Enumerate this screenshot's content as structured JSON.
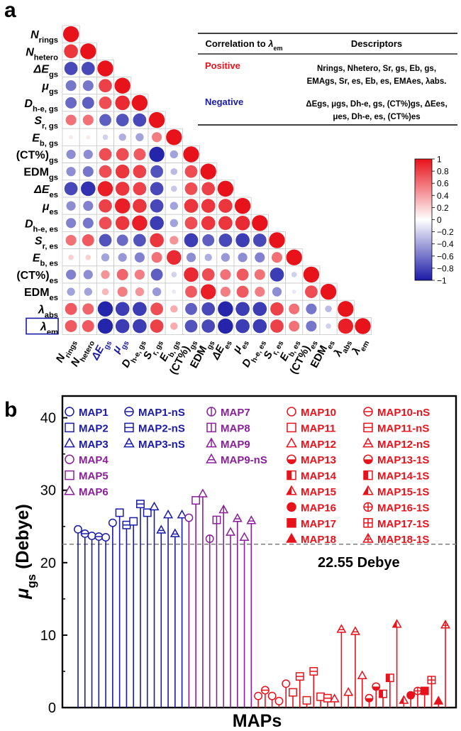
{
  "panel_labels": {
    "a": "a",
    "b": "b"
  },
  "colors": {
    "red": "#e8121b",
    "blue": "#1a1aa8",
    "purple": "#8a1f9a",
    "border": "#c8c8c8",
    "ref_line": "#888888"
  },
  "chart_data": [
    {
      "type": "heatmap",
      "labels": [
        [
          "N",
          "rings"
        ],
        [
          "N",
          "hetero"
        ],
        [
          "ΔE",
          "gs"
        ],
        [
          "μ",
          "gs"
        ],
        [
          "D",
          "h-e, gs"
        ],
        [
          "S",
          "r, gs"
        ],
        [
          "E",
          "b, gs"
        ],
        [
          "(CT%)",
          "gs"
        ],
        [
          "EDM",
          "gs"
        ],
        [
          "ΔE",
          "es"
        ],
        [
          "μ",
          "es"
        ],
        [
          "D",
          "h-e, es"
        ],
        [
          "S",
          "r, es"
        ],
        [
          "E",
          "b, es"
        ],
        [
          "(CT%)",
          "es"
        ],
        [
          "EDM",
          "es"
        ],
        [
          "λ",
          "abs"
        ],
        [
          "λ",
          "em"
        ]
      ],
      "label_italic": [
        true,
        true,
        true,
        true,
        true,
        true,
        true,
        false,
        false,
        true,
        true,
        true,
        true,
        true,
        false,
        false,
        true,
        true
      ],
      "blue_x_labels": [
        2,
        3
      ],
      "boxed_y_label": 17,
      "matrix": [
        [
          1
        ],
        [
          0.85,
          1
        ],
        [
          -0.8,
          -0.8,
          1
        ],
        [
          -0.6,
          -0.6,
          0.8,
          1
        ],
        [
          -0.65,
          -0.7,
          0.75,
          0.9,
          1
        ],
        [
          0.6,
          0.6,
          -0.7,
          -0.75,
          -0.8,
          1
        ],
        [
          0.1,
          0.1,
          -0.2,
          -0.35,
          -0.4,
          0.55,
          1
        ],
        [
          -0.5,
          -0.5,
          0.75,
          0.75,
          0.7,
          -0.95,
          -0.4,
          1
        ],
        [
          -0.5,
          -0.6,
          0.75,
          0.85,
          0.8,
          -0.75,
          -0.3,
          0.75,
          1
        ],
        [
          -0.8,
          -0.9,
          0.95,
          0.85,
          0.8,
          -0.8,
          -0.25,
          0.75,
          0.8,
          1
        ],
        [
          -0.5,
          -0.55,
          0.8,
          0.95,
          0.85,
          -0.8,
          -0.4,
          0.85,
          0.85,
          0.85,
          1
        ],
        [
          -0.55,
          -0.6,
          0.75,
          0.85,
          0.95,
          -0.85,
          -0.4,
          0.75,
          0.85,
          0.85,
          0.9,
          1
        ],
        [
          0.6,
          0.7,
          -0.75,
          -0.65,
          -0.75,
          0.85,
          0.45,
          -0.85,
          -0.7,
          -0.8,
          -0.85,
          -0.8,
          1
        ],
        [
          0.2,
          0.2,
          -0.4,
          -0.45,
          -0.55,
          0.6,
          0.9,
          -0.5,
          -0.35,
          -0.45,
          -0.5,
          -0.55,
          0.6,
          1
        ],
        [
          -0.55,
          -0.5,
          0.45,
          0.65,
          0.55,
          -0.7,
          -0.2,
          0.9,
          0.75,
          0.6,
          0.7,
          0.6,
          -0.85,
          -0.2,
          1
        ],
        [
          -0.4,
          -0.4,
          0.3,
          0.55,
          0.45,
          -0.45,
          -0.1,
          0.7,
          0.95,
          0.55,
          0.7,
          0.55,
          -0.5,
          -0.1,
          0.75,
          1
        ],
        [
          0.7,
          0.65,
          -0.95,
          -0.85,
          -0.85,
          0.75,
          0.35,
          -0.7,
          -0.8,
          -0.95,
          -0.85,
          -0.85,
          0.8,
          0.6,
          -0.6,
          -0.3,
          1
        ],
        [
          0.7,
          0.7,
          -0.95,
          -0.85,
          -0.85,
          0.8,
          0.35,
          -0.75,
          -0.8,
          -0.95,
          -0.85,
          -0.85,
          0.8,
          0.6,
          -0.6,
          -0.2,
          0.95,
          1
        ]
      ],
      "colorbar": {
        "range": [
          -1,
          1
        ],
        "ticks": [
          "1",
          "0.8",
          "0.6",
          "0.4",
          "0.2",
          "0",
          "−0.2",
          "−0.4",
          "−0.6",
          "−0.8",
          "−1"
        ]
      },
      "table": {
        "header_col1_prefix": "Correlation to ",
        "header_col1_symbol": "λ",
        "header_col1_sub": "em",
        "header_col2": "Descriptors",
        "positive_label": "Positive",
        "positive_line1": "Nrings, Nhetero, Sr, gs, Eb, gs,",
        "positive_line2": "EMAgs, Sr, es, Eb, es, EMAes, λabs.",
        "negative_label": "Negative",
        "negative_line1": "ΔEgs, μgs, Dh-e, gs, (CT%)gs, ΔEes,",
        "negative_line2": "μes, Dh-e, es, (CT%)es"
      }
    },
    {
      "type": "scatter",
      "xlabel": "MAPs",
      "ylabel_symbol": "μ",
      "ylabel_sub": "gs",
      "ylabel_unit": " (Debye)",
      "ylim": [
        0,
        43
      ],
      "yticks": [
        0,
        10,
        20,
        30,
        40
      ],
      "reference": {
        "value": 22.55,
        "label": "22.55 Debye"
      },
      "legend_columns": [
        [
          {
            "name": "MAP1",
            "marker": "circle",
            "color": "blue"
          },
          {
            "name": "MAP2",
            "marker": "square",
            "color": "blue"
          },
          {
            "name": "MAP3",
            "marker": "triangle",
            "color": "blue"
          },
          {
            "name": "MAP4",
            "marker": "circle",
            "color": "purple"
          },
          {
            "name": "MAP5",
            "marker": "square",
            "color": "purple"
          },
          {
            "name": "MAP6",
            "marker": "triangle",
            "color": "purple"
          }
        ],
        [
          {
            "name": "MAP1-nS",
            "marker": "circle-h",
            "color": "blue"
          },
          {
            "name": "MAP2-nS",
            "marker": "square-h",
            "color": "blue"
          },
          {
            "name": "MAP3-nS",
            "marker": "triangle-h",
            "color": "blue"
          }
        ],
        [
          {
            "name": "MAP7",
            "marker": "circle-v",
            "color": "purple"
          },
          {
            "name": "MAP8",
            "marker": "square-v",
            "color": "purple"
          },
          {
            "name": "MAP9",
            "marker": "triangle-v",
            "color": "purple"
          },
          {
            "name": "MAP9-nS",
            "marker": "triangle-h",
            "color": "purple"
          }
        ],
        [
          {
            "name": "MAP10",
            "marker": "circle",
            "color": "red"
          },
          {
            "name": "MAP11",
            "marker": "square",
            "color": "red"
          },
          {
            "name": "MAP12",
            "marker": "triangle",
            "color": "red"
          },
          {
            "name": "MAP13",
            "marker": "circle-half",
            "color": "red"
          },
          {
            "name": "MAP14",
            "marker": "square-half",
            "color": "red"
          },
          {
            "name": "MAP15",
            "marker": "triangle-half",
            "color": "red"
          },
          {
            "name": "MAP16",
            "marker": "circle-fill",
            "color": "red"
          },
          {
            "name": "MAP17",
            "marker": "square-fill",
            "color": "red"
          },
          {
            "name": "MAP18",
            "marker": "triangle-fill",
            "color": "red"
          }
        ],
        [
          {
            "name": "MAP10-nS",
            "marker": "circle-h",
            "color": "red"
          },
          {
            "name": "MAP11-nS",
            "marker": "square-h",
            "color": "red"
          },
          {
            "name": "MAP12-nS",
            "marker": "triangle-h",
            "color": "red"
          },
          {
            "name": "MAP13-1S",
            "marker": "circle-half",
            "color": "red"
          },
          {
            "name": "MAP14-1S",
            "marker": "square-half",
            "color": "red"
          },
          {
            "name": "MAP15-1S",
            "marker": "triangle-half",
            "color": "red"
          },
          {
            "name": "MAP16-1S",
            "marker": "circle-cross",
            "color": "red"
          },
          {
            "name": "MAP17-1S",
            "marker": "square-cross",
            "color": "red"
          },
          {
            "name": "MAP18-1S",
            "marker": "triangle-cross",
            "color": "red"
          }
        ]
      ],
      "points": [
        {
          "marker": "circle",
          "color": "blue",
          "value": 24.6
        },
        {
          "marker": "circle-h",
          "color": "blue",
          "value": 24.0
        },
        {
          "marker": "circle",
          "color": "blue",
          "value": 23.7
        },
        {
          "marker": "circle-h",
          "color": "blue",
          "value": 23.6
        },
        {
          "marker": "circle",
          "color": "blue",
          "value": 23.5
        },
        {
          "marker": "circle",
          "color": "blue",
          "value": 25.5
        },
        {
          "marker": "square",
          "color": "blue",
          "value": 26.9
        },
        {
          "marker": "square-h",
          "color": "blue",
          "value": 25.2
        },
        {
          "marker": "square",
          "color": "blue",
          "value": 25.7
        },
        {
          "marker": "square-h",
          "color": "blue",
          "value": 28.1
        },
        {
          "marker": "square",
          "color": "blue",
          "value": 26.9
        },
        {
          "marker": "triangle",
          "color": "blue",
          "value": 27.7
        },
        {
          "marker": "triangle-h",
          "color": "blue",
          "value": 24.5
        },
        {
          "marker": "triangle",
          "color": "blue",
          "value": 26.6
        },
        {
          "marker": "triangle-h",
          "color": "blue",
          "value": 24.0
        },
        {
          "marker": "triangle",
          "color": "blue",
          "value": 26.6
        },
        {
          "marker": "circle",
          "color": "purple",
          "value": 26.2
        },
        {
          "marker": "square",
          "color": "purple",
          "value": 28.6
        },
        {
          "marker": "triangle",
          "color": "purple",
          "value": 29.5
        },
        {
          "marker": "circle-v",
          "color": "purple",
          "value": 23.3
        },
        {
          "marker": "square-v",
          "color": "purple",
          "value": 25.9
        },
        {
          "marker": "triangle-v",
          "color": "purple",
          "value": 27.3
        },
        {
          "marker": "triangle",
          "color": "purple",
          "value": 24.2
        },
        {
          "marker": "triangle-h",
          "color": "purple",
          "value": 26.1
        },
        {
          "marker": "triangle",
          "color": "purple",
          "value": 23.5
        },
        {
          "marker": "triangle-h",
          "color": "purple",
          "value": 25.8
        },
        {
          "marker": "circle",
          "color": "red",
          "value": 1.6
        },
        {
          "marker": "circle-h",
          "color": "red",
          "value": 2.4
        },
        {
          "marker": "circle",
          "color": "red",
          "value": 1.6
        },
        {
          "marker": "circle",
          "color": "red",
          "value": 0.9
        },
        {
          "marker": "circle",
          "color": "red",
          "value": 3.3
        },
        {
          "marker": "square",
          "color": "red",
          "value": 2.1
        },
        {
          "marker": "square-h",
          "color": "red",
          "value": 4.3
        },
        {
          "marker": "square",
          "color": "red",
          "value": 1.0
        },
        {
          "marker": "square-h",
          "color": "red",
          "value": 5.0
        },
        {
          "marker": "square",
          "color": "red",
          "value": 1.5
        },
        {
          "marker": "square-h",
          "color": "red",
          "value": 1.3
        },
        {
          "marker": "triangle",
          "color": "red",
          "value": 1.2
        },
        {
          "marker": "triangle-h",
          "color": "red",
          "value": 10.8
        },
        {
          "marker": "triangle",
          "color": "red",
          "value": 2.1
        },
        {
          "marker": "triangle-h",
          "color": "red",
          "value": 10.5
        },
        {
          "marker": "triangle",
          "color": "red",
          "value": 4.4
        },
        {
          "marker": "circle-half",
          "color": "red",
          "value": 1.3
        },
        {
          "marker": "circle-half",
          "color": "red",
          "value": 2.9
        },
        {
          "marker": "square-half",
          "color": "red",
          "value": 1.9
        },
        {
          "marker": "square-half",
          "color": "red",
          "value": 4.1
        },
        {
          "marker": "triangle-half",
          "color": "red",
          "value": 11.5
        },
        {
          "marker": "triangle-half",
          "color": "red",
          "value": 1.0
        },
        {
          "marker": "circle-fill",
          "color": "red",
          "value": 1.7
        },
        {
          "marker": "circle-cross",
          "color": "red",
          "value": 2.3
        },
        {
          "marker": "square-fill",
          "color": "red",
          "value": 2.3
        },
        {
          "marker": "square-cross",
          "color": "red",
          "value": 3.8
        },
        {
          "marker": "triangle-fill",
          "color": "red",
          "value": 0.9
        },
        {
          "marker": "triangle-cross",
          "color": "red",
          "value": 11.4
        }
      ]
    }
  ]
}
